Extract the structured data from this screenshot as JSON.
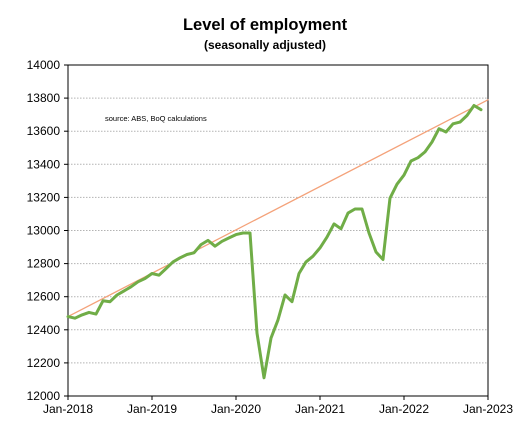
{
  "chart_data": {
    "type": "line",
    "title": "Level of employment",
    "subtitle": "(seasonally adjusted)",
    "annotation": "source:  ABS, BoQ calculations",
    "x_start": "2018-01",
    "x_tick_labels": [
      "Jan-2018",
      "Jan-2019",
      "Jan-2020",
      "Jan-2021",
      "Jan-2022",
      "Jan-2023"
    ],
    "ylim": [
      12000,
      14000
    ],
    "y_ticks": [
      12000,
      12200,
      12400,
      12600,
      12800,
      13000,
      13200,
      13400,
      13600,
      13800,
      14000
    ],
    "grid": "horizontal",
    "series": [
      {
        "color": "#70ad47",
        "x": [
          "2018-01",
          "2018-02",
          "2018-03",
          "2018-04",
          "2018-05",
          "2018-06",
          "2018-07",
          "2018-08",
          "2018-09",
          "2018-10",
          "2018-11",
          "2018-12",
          "2019-01",
          "2019-02",
          "2019-03",
          "2019-04",
          "2019-05",
          "2019-06",
          "2019-07",
          "2019-08",
          "2019-09",
          "2019-10",
          "2019-11",
          "2019-12",
          "2020-01",
          "2020-02",
          "2020-03",
          "2020-04",
          "2020-05",
          "2020-06",
          "2020-07",
          "2020-08",
          "2020-09",
          "2020-10",
          "2020-11",
          "2020-12",
          "2021-01",
          "2021-02",
          "2021-03",
          "2021-04",
          "2021-05",
          "2021-06",
          "2021-07",
          "2021-08",
          "2021-09",
          "2021-10",
          "2021-11",
          "2021-12",
          "2022-01",
          "2022-02",
          "2022-03",
          "2022-04",
          "2022-05",
          "2022-06",
          "2022-07",
          "2022-08",
          "2022-09",
          "2022-10",
          "2022-11",
          "2022-12"
        ],
        "values": [
          12480,
          12470,
          12490,
          12505,
          12495,
          12575,
          12570,
          12610,
          12635,
          12660,
          12690,
          12710,
          12740,
          12730,
          12770,
          12810,
          12835,
          12855,
          12865,
          12915,
          12940,
          12905,
          12935,
          12955,
          12975,
          12985,
          12985,
          12380,
          12110,
          12350,
          12460,
          12610,
          12570,
          12740,
          12810,
          12845,
          12895,
          12960,
          13040,
          13010,
          13105,
          13130,
          13130,
          12985,
          12870,
          12825,
          13195,
          13280,
          13335,
          13420,
          13440,
          13475,
          13535,
          13615,
          13595,
          13645,
          13655,
          13695,
          13755,
          13730
        ]
      },
      {
        "color": "#f4a27a",
        "kind": "trend",
        "x": [
          "2018-01",
          "2023-01"
        ],
        "values": [
          12480,
          13790
        ]
      }
    ]
  }
}
